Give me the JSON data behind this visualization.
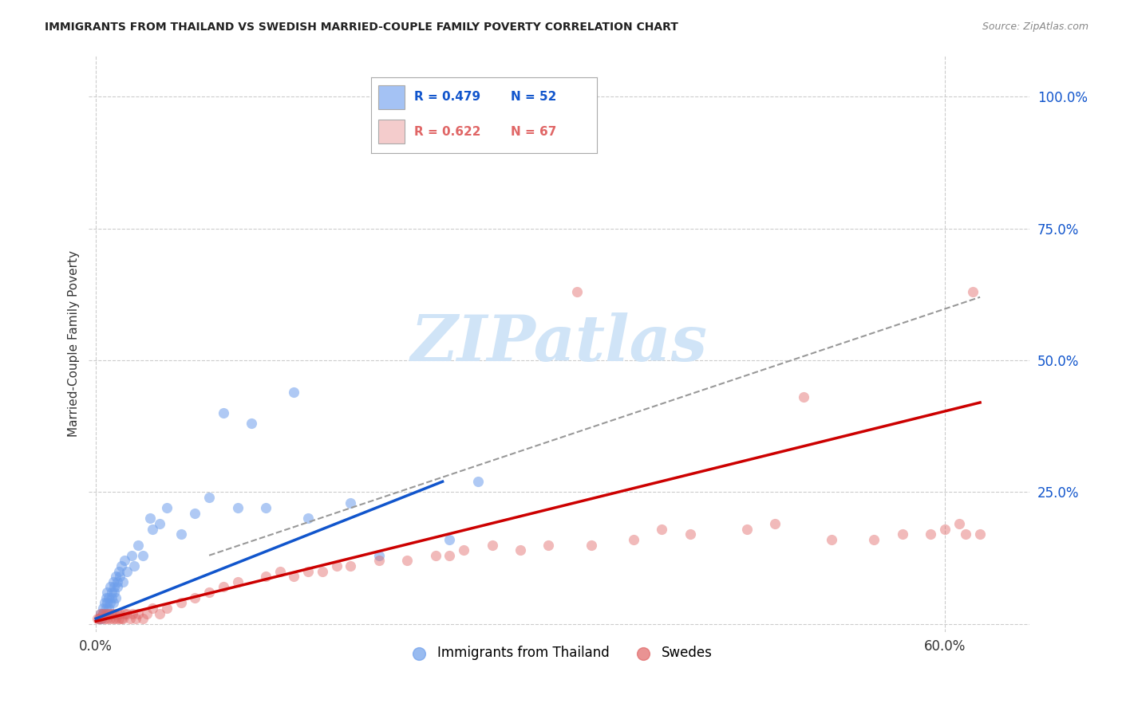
{
  "title": "IMMIGRANTS FROM THAILAND VS SWEDISH MARRIED-COUPLE FAMILY POVERTY CORRELATION CHART",
  "source": "Source: ZipAtlas.com",
  "ylabel": "Married-Couple Family Poverty",
  "blue_color": "#a4c2f4",
  "pink_color": "#f4cccc",
  "blue_dot_color": "#6d9eeb",
  "pink_dot_color": "#e06666",
  "blue_line_color": "#1155cc",
  "pink_line_color": "#cc0000",
  "dashed_line_color": "#999999",
  "watermark_text_color": "#d0e4f7",
  "background_color": "#ffffff",
  "ytick_color": "#1155cc",
  "blue_scatter_x": [
    0.002,
    0.003,
    0.004,
    0.005,
    0.005,
    0.006,
    0.006,
    0.007,
    0.007,
    0.008,
    0.008,
    0.009,
    0.009,
    0.01,
    0.01,
    0.011,
    0.011,
    0.012,
    0.012,
    0.013,
    0.013,
    0.014,
    0.014,
    0.015,
    0.015,
    0.016,
    0.017,
    0.018,
    0.019,
    0.02,
    0.022,
    0.025,
    0.027,
    0.03,
    0.033,
    0.038,
    0.04,
    0.045,
    0.05,
    0.06,
    0.07,
    0.08,
    0.1,
    0.12,
    0.15,
    0.18,
    0.2,
    0.25,
    0.14,
    0.09,
    0.11,
    0.27
  ],
  "blue_scatter_y": [
    0.01,
    0.02,
    0.01,
    0.03,
    0.02,
    0.04,
    0.02,
    0.03,
    0.05,
    0.04,
    0.06,
    0.03,
    0.05,
    0.04,
    0.07,
    0.05,
    0.06,
    0.04,
    0.08,
    0.06,
    0.07,
    0.05,
    0.09,
    0.07,
    0.08,
    0.1,
    0.09,
    0.11,
    0.08,
    0.12,
    0.1,
    0.13,
    0.11,
    0.15,
    0.13,
    0.2,
    0.18,
    0.19,
    0.22,
    0.17,
    0.21,
    0.24,
    0.22,
    0.22,
    0.2,
    0.23,
    0.13,
    0.16,
    0.44,
    0.4,
    0.38,
    0.27
  ],
  "pink_scatter_x": [
    0.001,
    0.002,
    0.003,
    0.004,
    0.005,
    0.006,
    0.007,
    0.008,
    0.009,
    0.01,
    0.011,
    0.012,
    0.013,
    0.014,
    0.015,
    0.016,
    0.017,
    0.018,
    0.019,
    0.02,
    0.022,
    0.024,
    0.026,
    0.028,
    0.03,
    0.033,
    0.036,
    0.04,
    0.045,
    0.05,
    0.06,
    0.07,
    0.08,
    0.09,
    0.1,
    0.12,
    0.14,
    0.16,
    0.18,
    0.2,
    0.22,
    0.24,
    0.26,
    0.28,
    0.3,
    0.32,
    0.35,
    0.38,
    0.42,
    0.46,
    0.5,
    0.52,
    0.55,
    0.57,
    0.59,
    0.6,
    0.61,
    0.615,
    0.62,
    0.625,
    0.13,
    0.15,
    0.17,
    0.25,
    0.34,
    0.4,
    0.48
  ],
  "pink_scatter_y": [
    0.01,
    0.01,
    0.02,
    0.01,
    0.02,
    0.01,
    0.02,
    0.01,
    0.02,
    0.01,
    0.02,
    0.01,
    0.02,
    0.01,
    0.02,
    0.01,
    0.02,
    0.01,
    0.01,
    0.02,
    0.02,
    0.01,
    0.02,
    0.01,
    0.02,
    0.01,
    0.02,
    0.03,
    0.02,
    0.03,
    0.04,
    0.05,
    0.06,
    0.07,
    0.08,
    0.09,
    0.09,
    0.1,
    0.11,
    0.12,
    0.12,
    0.13,
    0.14,
    0.15,
    0.14,
    0.15,
    0.15,
    0.16,
    0.17,
    0.18,
    0.43,
    0.16,
    0.16,
    0.17,
    0.17,
    0.18,
    0.19,
    0.17,
    0.63,
    0.17,
    0.1,
    0.1,
    0.11,
    0.13,
    0.63,
    0.18,
    0.19
  ],
  "blue_line_x": [
    0.0,
    0.245
  ],
  "blue_line_y": [
    0.01,
    0.27
  ],
  "pink_line_x": [
    0.0,
    0.625
  ],
  "pink_line_y": [
    0.005,
    0.42
  ],
  "dashed_line_x": [
    0.08,
    0.625
  ],
  "dashed_line_y": [
    0.13,
    0.62
  ],
  "xlim": [
    -0.005,
    0.66
  ],
  "ylim": [
    -0.015,
    1.08
  ],
  "yticks": [
    0.0,
    0.25,
    0.5,
    0.75,
    1.0
  ],
  "ytick_labels": [
    "",
    "25.0%",
    "50.0%",
    "75.0%",
    "100.0%"
  ],
  "xticks": [
    0.0,
    0.6
  ],
  "xtick_labels": [
    "0.0%",
    "60.0%"
  ]
}
